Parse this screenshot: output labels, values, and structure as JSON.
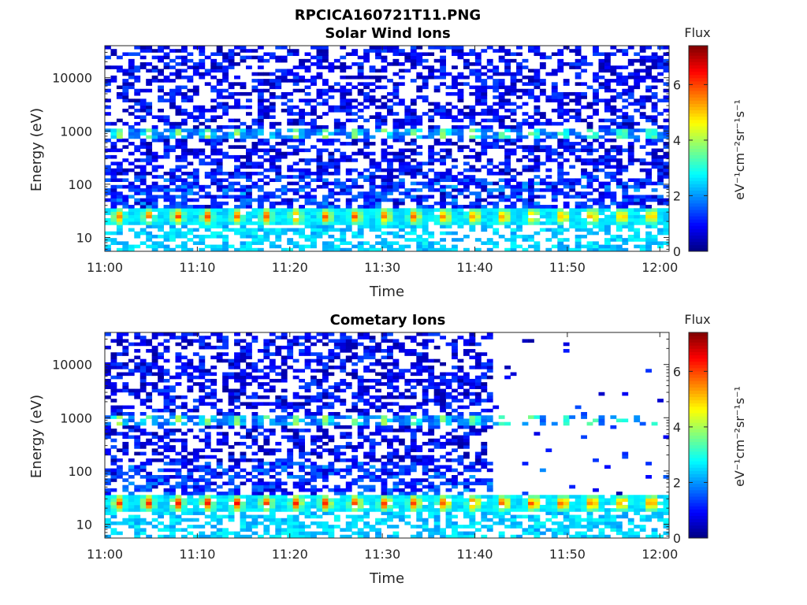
{
  "figure_title": "RPCICA160721T11.PNG",
  "chart_data": [
    {
      "type": "heatmap",
      "title": "Solar Wind Ions",
      "xlabel": "Time",
      "ylabel": "Energy (eV)",
      "x_ticks": [
        "11:00",
        "11:10",
        "11:20",
        "11:30",
        "11:40",
        "11:50",
        "12:00"
      ],
      "x_range_minutes": [
        0,
        61
      ],
      "y_scale": "log",
      "y_ticks": [
        10,
        100,
        1000,
        10000
      ],
      "y_tick_labels": [
        "10",
        "100",
        "1000",
        "10000"
      ],
      "y_range": [
        5.5,
        40000
      ],
      "colorbar": {
        "title": "Flux",
        "units": "eV⁻¹cm⁻²sr⁻¹s⁻¹",
        "ticks": [
          0,
          2,
          4,
          6
        ],
        "range": [
          0,
          7.4
        ]
      },
      "features": [
        {
          "description": "periodic peaks near 25 eV",
          "energy_eV": 25,
          "peak_flux": 5.5,
          "period_minutes": 3.2
        },
        {
          "description": "periodic peaks near 900 eV",
          "energy_eV": 900,
          "peak_flux": 3.5,
          "period_minutes": 3.2
        },
        {
          "description": "noise band",
          "energy_range_eV": [
            30,
            40000
          ],
          "flux_range": [
            0.2,
            1.5
          ]
        }
      ],
      "cometary_cutoff_minutes": null
    },
    {
      "type": "heatmap",
      "title": "Cometary Ions",
      "xlabel": "Time",
      "ylabel": "Energy (eV)",
      "x_ticks": [
        "11:00",
        "11:10",
        "11:20",
        "11:30",
        "11:40",
        "11:50",
        "12:00"
      ],
      "x_range_minutes": [
        0,
        61
      ],
      "y_scale": "log",
      "y_ticks": [
        10,
        100,
        1000,
        10000
      ],
      "y_tick_labels": [
        "10",
        "100",
        "1000",
        "10000"
      ],
      "y_range": [
        5.5,
        40000
      ],
      "colorbar": {
        "title": "Flux",
        "units": "eV⁻¹cm⁻²sr⁻¹s⁻¹",
        "ticks": [
          0,
          2,
          4,
          6
        ],
        "range": [
          0,
          7.4
        ]
      },
      "features": [
        {
          "description": "periodic peaks near 25 eV",
          "energy_eV": 25,
          "peak_flux": 6.0,
          "period_minutes": 3.2
        },
        {
          "description": "periodic peaks near 900 eV",
          "energy_eV": 900,
          "peak_flux": 3.5,
          "period_minutes": 3.2
        },
        {
          "description": "noise band (sparse after 11:42)",
          "energy_range_eV": [
            30,
            40000
          ],
          "flux_range": [
            0.2,
            1.5
          ]
        }
      ],
      "cometary_cutoff_minutes": 42
    }
  ]
}
